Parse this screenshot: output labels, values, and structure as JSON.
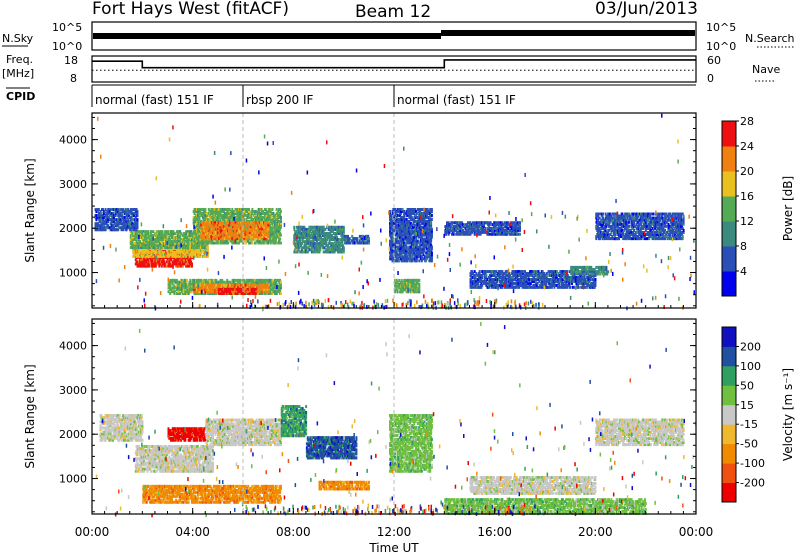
{
  "header": {
    "station": "Fort Hays West (fitACF)",
    "beam": "Beam 12",
    "date": "03/Jun/2013"
  },
  "top_panels": {
    "nsky_label": "N.Sky",
    "nsky_ticks": [
      "10^5",
      "10^0"
    ],
    "nsearch_label": "N.Search",
    "nsearch_ticks": [
      "10^5",
      "10^0"
    ],
    "freq_label": "Freq.",
    "freq_unit": "[MHz]",
    "freq_ticks": [
      "18",
      "8"
    ],
    "nave_label": "Nave",
    "nave_ticks": [
      "60",
      "0"
    ],
    "cpid_label": "CPID",
    "cpid_segments": [
      {
        "label": "normal (fast) 151 IF",
        "start": 0,
        "end": 6
      },
      {
        "label": "rbsp 200 IF",
        "start": 6,
        "end": 12
      },
      {
        "label": "normal (fast) 151 IF",
        "start": 12,
        "end": 24
      }
    ],
    "freq_series": [
      [
        0,
        16
      ],
      [
        2,
        16
      ],
      [
        2,
        13.5
      ],
      [
        14,
        13.5
      ],
      [
        14,
        16.5
      ],
      [
        24,
        16.5
      ]
    ],
    "nave_series": [
      [
        0,
        16
      ],
      [
        24,
        16
      ]
    ]
  },
  "x_axis": {
    "label": "Time UT",
    "ticks": [
      "00:00",
      "04:00",
      "08:00",
      "12:00",
      "16:00",
      "20:00",
      "00:00"
    ],
    "tick_hours": [
      0,
      4,
      8,
      12,
      16,
      20,
      24
    ]
  },
  "chart_data": [
    {
      "type": "heatmap",
      "name": "power",
      "ylabel": "Slant Range [km]",
      "yticks": [
        "1000",
        "2000",
        "3000",
        "4000"
      ],
      "ylim": [
        200,
        4600
      ],
      "xlim": [
        0,
        24
      ],
      "colorbar": {
        "label": "Power [dB]",
        "ticks": [
          "4",
          "8",
          "12",
          "16",
          "20",
          "24",
          "28"
        ],
        "colors": [
          "#0000ee",
          "#2a50b8",
          "#3a8a80",
          "#55aa55",
          "#e8c020",
          "#f08010",
          "#ee1010"
        ]
      },
      "blobs": [
        {
          "t0": 1.7,
          "t1": 4.0,
          "r0": 1180,
          "r1": 1560,
          "c": 6
        },
        {
          "t0": 1.6,
          "t1": 4.6,
          "r0": 1400,
          "r1": 1700,
          "c": 4
        },
        {
          "t0": 1.5,
          "t1": 4.5,
          "r0": 1600,
          "r1": 2000,
          "c": 3
        },
        {
          "t0": 4.0,
          "t1": 7.5,
          "r0": 1700,
          "r1": 2500,
          "c": 3
        },
        {
          "t0": 4.3,
          "t1": 7.0,
          "r0": 1800,
          "r1": 2200,
          "c": 5
        },
        {
          "t0": 3.0,
          "t1": 7.5,
          "r0": 560,
          "r1": 900,
          "c": 3
        },
        {
          "t0": 4.0,
          "t1": 7.0,
          "r0": 600,
          "r1": 800,
          "c": 5
        },
        {
          "t0": 5.0,
          "t1": 6.5,
          "r0": 560,
          "r1": 700,
          "c": 6
        },
        {
          "t0": 0.1,
          "t1": 1.8,
          "r0": 2000,
          "r1": 2500,
          "c": 1
        },
        {
          "t0": 8.0,
          "t1": 10.0,
          "r0": 1500,
          "r1": 2100,
          "c": 2
        },
        {
          "t0": 10.0,
          "t1": 11.0,
          "r0": 1700,
          "r1": 1900,
          "c": 1
        },
        {
          "t0": 11.8,
          "t1": 13.5,
          "r0": 1300,
          "r1": 2500,
          "c": 1
        },
        {
          "t0": 12.0,
          "t1": 13.0,
          "r0": 600,
          "r1": 900,
          "c": 3
        },
        {
          "t0": 15.0,
          "t1": 20.0,
          "r0": 700,
          "r1": 1100,
          "c": 1
        },
        {
          "t0": 19.0,
          "t1": 20.5,
          "r0": 1000,
          "r1": 1200,
          "c": 2
        },
        {
          "t0": 20.0,
          "t1": 23.5,
          "r0": 1800,
          "r1": 2400,
          "c": 1
        },
        {
          "t0": 14.0,
          "t1": 17.0,
          "r0": 1900,
          "r1": 2200,
          "c": 1
        }
      ]
    },
    {
      "type": "heatmap",
      "name": "velocity",
      "ylabel": "Slant Range [km]",
      "yticks": [
        "1000",
        "2000",
        "3000",
        "4000"
      ],
      "ylim": [
        200,
        4600
      ],
      "xlim": [
        0,
        24
      ],
      "colorbar": {
        "label": "Velocity [m s⁻¹]",
        "ticks": [
          "-200",
          "-100",
          "-50",
          "-15",
          "15",
          "50",
          "100",
          "200"
        ],
        "colors": [
          "#ee0000",
          "#f05010",
          "#f08a00",
          "#f0b830",
          "#c8c8c8",
          "#70c040",
          "#30a060",
          "#2050a0",
          "#1010c0"
        ]
      },
      "blobs": [
        {
          "t0": 1.7,
          "t1": 4.8,
          "r0": 1200,
          "r1": 1800,
          "c": 4
        },
        {
          "t0": 0.3,
          "t1": 2.0,
          "r0": 1900,
          "r1": 2500,
          "c": 4
        },
        {
          "t0": 3.0,
          "t1": 4.5,
          "r0": 1900,
          "r1": 2200,
          "c": 0
        },
        {
          "t0": 4.5,
          "t1": 7.5,
          "r0": 1800,
          "r1": 2400,
          "c": 4
        },
        {
          "t0": 2.0,
          "t1": 7.5,
          "r0": 500,
          "r1": 900,
          "c": 2
        },
        {
          "t0": 7.5,
          "t1": 8.5,
          "r0": 2000,
          "r1": 2700,
          "c": 6
        },
        {
          "t0": 8.5,
          "t1": 10.5,
          "r0": 1500,
          "r1": 2000,
          "c": 7
        },
        {
          "t0": 9.0,
          "t1": 11.0,
          "r0": 800,
          "r1": 1000,
          "c": 2
        },
        {
          "t0": 11.8,
          "t1": 13.5,
          "r0": 1200,
          "r1": 2500,
          "c": 5
        },
        {
          "t0": 14.0,
          "t1": 22.0,
          "r0": 250,
          "r1": 600,
          "c": 5
        },
        {
          "t0": 15.0,
          "t1": 20.0,
          "r0": 700,
          "r1": 1100,
          "c": 4
        },
        {
          "t0": 20.0,
          "t1": 23.5,
          "r0": 1800,
          "r1": 2400,
          "c": 4
        }
      ]
    }
  ]
}
